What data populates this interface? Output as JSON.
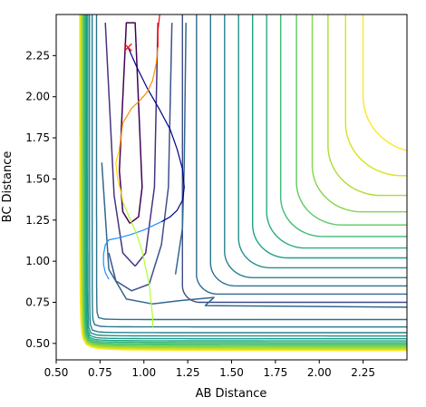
{
  "chart_data": {
    "type": "contour",
    "xlabel": "AB Distance",
    "ylabel": "BC Distance",
    "xlim": [
      0.5,
      2.5
    ],
    "ylim": [
      0.4,
      2.5
    ],
    "xticks": [
      "0.50",
      "0.75",
      "1.00",
      "1.25",
      "1.50",
      "1.75",
      "2.00",
      "2.25"
    ],
    "yticks": [
      "0.50",
      "0.75",
      "1.00",
      "1.25",
      "1.50",
      "1.75",
      "2.00",
      "2.25"
    ],
    "colormap": [
      "#440154",
      "#3b528b",
      "#21918c",
      "#5ec962",
      "#fde725"
    ],
    "start_marker": {
      "x": 0.91,
      "y": 2.3,
      "symbol": "x",
      "color": "#ff0000"
    },
    "contour_levels": [
      {
        "level_index": 0,
        "color": "#440154",
        "kind": "well",
        "a": 0.82,
        "b": 0.95,
        "points": [
          [
            0.92,
            1.23
          ],
          [
            0.97,
            1.27
          ],
          [
            0.99,
            1.45
          ],
          [
            0.95,
            2.45
          ],
          [
            0.9,
            2.45
          ],
          [
            0.86,
            1.55
          ],
          [
            0.88,
            1.3
          ],
          [
            0.92,
            1.23
          ]
        ]
      },
      {
        "level_index": 1,
        "color": "#46337e",
        "kind": "well",
        "points": [
          [
            0.95,
            0.97
          ],
          [
            1.01,
            1.05
          ],
          [
            1.06,
            1.45
          ],
          [
            1.08,
            2.45
          ]
        ]
      },
      {
        "level_index": 1,
        "color": "#46337e",
        "kind": "well-left",
        "points": [
          [
            0.95,
            0.97
          ],
          [
            0.88,
            1.05
          ],
          [
            0.83,
            1.4
          ],
          [
            0.78,
            2.45
          ]
        ]
      },
      {
        "level_index": 2,
        "color": "#3b528b",
        "kind": "well",
        "points": [
          [
            0.8,
            1.05
          ],
          [
            0.84,
            0.88
          ],
          [
            0.93,
            0.82
          ],
          [
            1.03,
            0.86
          ],
          [
            1.1,
            1.1
          ],
          [
            1.14,
            1.45
          ],
          [
            1.16,
            2.45
          ]
        ]
      },
      {
        "level_index": 3,
        "color": "#31688e",
        "kind": "saddle",
        "points": [
          [
            0.76,
            1.6
          ],
          [
            0.8,
            0.95
          ],
          [
            0.9,
            0.77
          ],
          [
            1.05,
            0.74
          ],
          [
            1.2,
            0.76
          ],
          [
            1.4,
            0.78
          ],
          [
            1.35,
            0.73
          ],
          [
            2.5,
            0.72
          ]
        ]
      },
      {
        "level_index": 3,
        "color": "#31688e",
        "kind": "saddle-right",
        "points": [
          [
            1.18,
            0.92
          ],
          [
            1.22,
            1.2
          ],
          [
            1.23,
            1.6
          ],
          [
            1.24,
            2.45
          ]
        ]
      }
    ],
    "asymptotic_levels": [
      {
        "x_inf": 0.73,
        "y_inf": 0.645,
        "color": "#2c728e"
      },
      {
        "x_inf": 0.705,
        "y_inf": 0.6,
        "color": "#2a788e"
      },
      {
        "x_inf": 0.69,
        "y_inf": 0.565,
        "color": "#25838e"
      },
      {
        "x_inf": 0.68,
        "y_inf": 0.545,
        "color": "#21918c"
      },
      {
        "x_inf": 0.673,
        "y_inf": 0.528,
        "color": "#1f9a8a"
      },
      {
        "x_inf": 0.667,
        "y_inf": 0.515,
        "color": "#22a884"
      },
      {
        "x_inf": 0.662,
        "y_inf": 0.505,
        "color": "#35b779"
      },
      {
        "x_inf": 0.657,
        "y_inf": 0.496,
        "color": "#44bf70"
      },
      {
        "x_inf": 0.653,
        "y_inf": 0.488,
        "color": "#5ec962"
      },
      {
        "x_inf": 0.649,
        "y_inf": 0.481,
        "color": "#7ad151"
      },
      {
        "x_inf": 0.645,
        "y_inf": 0.474,
        "color": "#95d840"
      },
      {
        "x_inf": 0.641,
        "y_inf": 0.468,
        "color": "#b5de2b"
      },
      {
        "x_inf": 0.637,
        "y_inf": 0.462,
        "color": "#d8e219"
      },
      {
        "x_inf": 0.633,
        "y_inf": 0.456,
        "color": "#fde725"
      }
    ],
    "corner_levels": [
      {
        "x0": 1.22,
        "y0": 0.75,
        "r": 0.1,
        "color": "#3e4a89"
      },
      {
        "x0": 1.3,
        "y0": 0.8,
        "r": 0.12,
        "color": "#31688e"
      },
      {
        "x0": 1.38,
        "y0": 0.85,
        "r": 0.14,
        "color": "#2c728e"
      },
      {
        "x0": 1.46,
        "y0": 0.9,
        "r": 0.16,
        "color": "#26828e"
      },
      {
        "x0": 1.54,
        "y0": 0.96,
        "r": 0.18,
        "color": "#21918c"
      },
      {
        "x0": 1.62,
        "y0": 1.02,
        "r": 0.2,
        "color": "#1fa088"
      },
      {
        "x0": 1.7,
        "y0": 1.08,
        "r": 0.22,
        "color": "#28ae80"
      },
      {
        "x0": 1.78,
        "y0": 1.15,
        "r": 0.24,
        "color": "#3fbc73"
      },
      {
        "x0": 1.87,
        "y0": 1.22,
        "r": 0.26,
        "color": "#5ec962"
      },
      {
        "x0": 1.96,
        "y0": 1.3,
        "r": 0.28,
        "color": "#84d44b"
      },
      {
        "x0": 2.05,
        "y0": 1.4,
        "r": 0.3,
        "color": "#addc30"
      },
      {
        "x0": 2.15,
        "y0": 1.52,
        "r": 0.32,
        "color": "#d8e219"
      },
      {
        "x0": 2.25,
        "y0": 1.66,
        "r": 0.34,
        "color": "#fde725"
      }
    ],
    "trajectories": [
      {
        "name": "dark-blue",
        "color": "#00008b",
        "points": [
          [
            0.91,
            2.3
          ],
          [
            0.96,
            2.18
          ],
          [
            1.02,
            2.05
          ],
          [
            1.09,
            1.92
          ],
          [
            1.15,
            1.8
          ],
          [
            1.19,
            1.68
          ],
          [
            1.22,
            1.56
          ],
          [
            1.23,
            1.45
          ],
          [
            1.22,
            1.37
          ],
          [
            1.19,
            1.31
          ],
          [
            1.15,
            1.27
          ],
          [
            1.1,
            1.24
          ]
        ]
      },
      {
        "name": "sky-blue",
        "color": "#1e90ff",
        "points": [
          [
            1.1,
            1.24
          ],
          [
            1.0,
            1.19
          ],
          [
            0.92,
            1.16
          ],
          [
            0.85,
            1.14
          ],
          [
            0.8,
            1.13
          ],
          [
            0.78,
            1.1
          ],
          [
            0.77,
            1.04
          ],
          [
            0.77,
            0.98
          ],
          [
            0.78,
            0.93
          ],
          [
            0.8,
            0.89
          ]
        ]
      },
      {
        "name": "yellow-green",
        "color": "#adff2f",
        "points": [
          [
            0.88,
            1.36
          ],
          [
            0.92,
            1.26
          ],
          [
            0.96,
            1.16
          ],
          [
            0.99,
            1.06
          ],
          [
            1.01,
            0.96
          ],
          [
            1.03,
            0.86
          ],
          [
            1.04,
            0.76
          ],
          [
            1.05,
            0.66
          ],
          [
            1.05,
            0.6
          ]
        ]
      },
      {
        "name": "yellow",
        "color": "#ffd700",
        "points": [
          [
            0.86,
            1.68
          ],
          [
            0.84,
            1.6
          ],
          [
            0.85,
            1.5
          ],
          [
            0.87,
            1.42
          ],
          [
            0.88,
            1.36
          ]
        ]
      },
      {
        "name": "orange",
        "color": "#ff8c00",
        "points": [
          [
            0.86,
            1.68
          ],
          [
            0.87,
            1.76
          ],
          [
            0.88,
            1.84
          ],
          [
            0.93,
            1.93
          ],
          [
            0.98,
            1.98
          ],
          [
            1.02,
            2.03
          ],
          [
            1.05,
            2.1
          ],
          [
            1.07,
            2.2
          ],
          [
            1.08,
            2.3
          ]
        ]
      },
      {
        "name": "red",
        "color": "#ff0000",
        "points": [
          [
            1.08,
            2.3
          ],
          [
            1.08,
            2.4
          ],
          [
            1.09,
            2.5
          ]
        ]
      }
    ]
  }
}
